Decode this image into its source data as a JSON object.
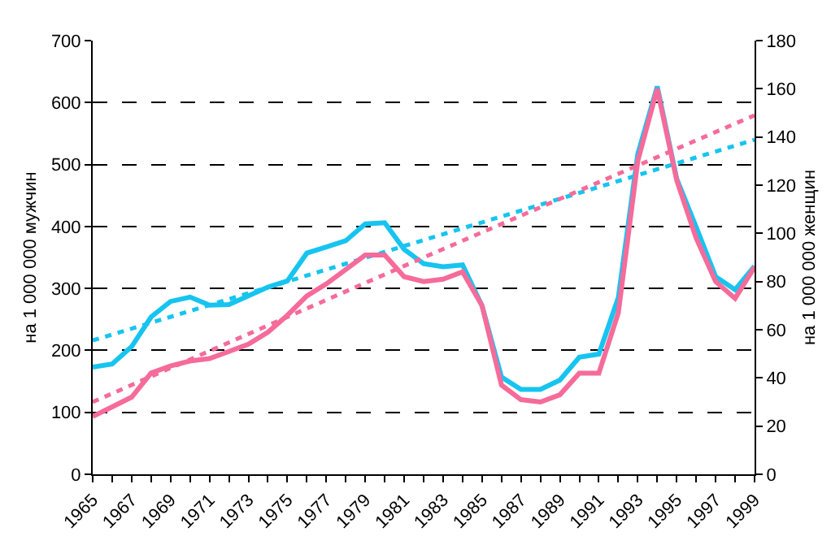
{
  "chart_data": {
    "type": "line",
    "ylabel": "на 1 000 000 мужчин",
    "y2label": "на 1 000 000 женщин",
    "x": [
      1965,
      1966,
      1967,
      1968,
      1969,
      1970,
      1971,
      1972,
      1973,
      1974,
      1975,
      1976,
      1977,
      1978,
      1979,
      1980,
      1981,
      1982,
      1983,
      1984,
      1985,
      1986,
      1987,
      1988,
      1989,
      1990,
      1991,
      1992,
      1993,
      1994,
      1995,
      1996,
      1997,
      1998,
      1999
    ],
    "xlim": [
      1965,
      1999
    ],
    "xticks": [
      1965,
      {
        "value": 1966,
        "label": null
      },
      1967,
      {
        "value": 1968,
        "label": null
      },
      1969,
      {
        "value": 1970,
        "label": null
      },
      1971,
      {
        "value": 1972,
        "label": null
      },
      1973,
      {
        "value": 1974,
        "label": null
      },
      1975,
      {
        "value": 1976,
        "label": null
      },
      1977,
      {
        "value": 1978,
        "label": null
      },
      1979,
      {
        "value": 1980,
        "label": null
      },
      1981,
      {
        "value": 1982,
        "label": null
      },
      1983,
      {
        "value": 1984,
        "label": null
      },
      1985,
      {
        "value": 1986,
        "label": null
      },
      1987,
      {
        "value": 1988,
        "label": null
      },
      1989,
      {
        "value": 1990,
        "label": null
      },
      1991,
      {
        "value": 1992,
        "label": null
      },
      1993,
      {
        "value": 1994,
        "label": null
      },
      1995,
      {
        "value": 1996,
        "label": null
      },
      1997,
      {
        "value": 1998,
        "label": null
      },
      1999
    ],
    "ylim": [
      0,
      700
    ],
    "yticks": [
      0,
      100,
      200,
      300,
      400,
      500,
      600,
      700
    ],
    "y2lim": [
      0,
      180
    ],
    "y2ticks": [
      0,
      20,
      40,
      60,
      80,
      100,
      120,
      140,
      160,
      180
    ],
    "grid": "y",
    "marker": "none",
    "line_style": "solid",
    "series": [
      {
        "color": "#17c4f0",
        "values": [
          173,
          178,
          206,
          254,
          279,
          286,
          273,
          274,
          288,
          302,
          312,
          357,
          367,
          377,
          404,
          406,
          363,
          340,
          335,
          338,
          272,
          157,
          137,
          137,
          152,
          189,
          194,
          285,
          517,
          626,
          477,
          399,
          319,
          298,
          336
        ]
      },
      {
        "color": "#f56b9a",
        "axis": "y2",
        "values": [
          24,
          28,
          32,
          42,
          45,
          47,
          48,
          51,
          54,
          59,
          66,
          74,
          79,
          85,
          91,
          91,
          82,
          80,
          81,
          84,
          70,
          37,
          31,
          30,
          33,
          42,
          42,
          67,
          130,
          160,
          122,
          98,
          80,
          73,
          86
        ]
      },
      {
        "type": "line",
        "color": "#17c4f0",
        "line_style": "dashed",
        "x": [
          1965,
          1982,
          1999
        ],
        "values": [
          216,
          378,
          540
        ]
      },
      {
        "type": "line",
        "color": "#f56b9a",
        "line_style": "dashed",
        "axis": "y2",
        "x": [
          1965,
          1982,
          1999
        ],
        "values": [
          30,
          90,
          149
        ]
      }
    ]
  }
}
